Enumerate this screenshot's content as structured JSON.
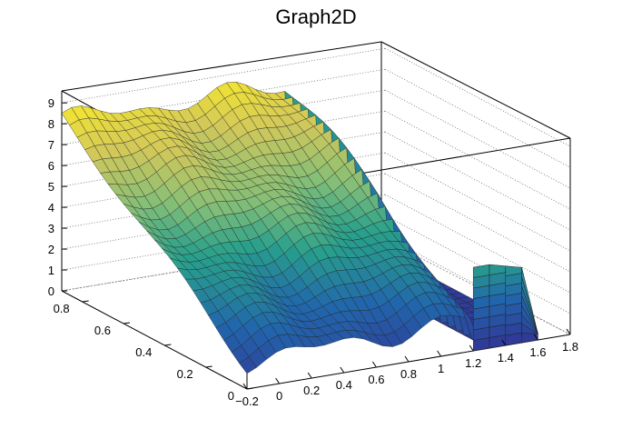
{
  "chart_data": {
    "type": "surface",
    "title": "Graph2D",
    "xlabel": "",
    "ylabel": "",
    "zlabel": "",
    "xlim": [
      -0.2,
      1.8
    ],
    "ylim": [
      0,
      0.9
    ],
    "zlim": [
      0,
      9.4
    ],
    "x_ticks": [
      "−0.2",
      "0",
      "0.2",
      "0.4",
      "0.6",
      "0.8",
      "1",
      "1.2",
      "1.4",
      "1.6",
      "1.8"
    ],
    "y_ticks": [
      "0",
      "0.2",
      "0.4",
      "0.6",
      "0.8"
    ],
    "z_ticks": [
      "0",
      "1",
      "2",
      "3",
      "4",
      "5",
      "6",
      "7",
      "8",
      "9"
    ],
    "grid": true,
    "colormap": "viridis-like",
    "data_region": {
      "x": [
        -0.2,
        1.6
      ],
      "y": [
        0,
        0.9
      ]
    },
    "z_at_x_min": {
      "y": [
        0,
        0.45,
        0.9
      ],
      "z": [
        1.3,
        4.6,
        8.2
      ]
    },
    "z_at_x_1_2": {
      "y": [
        0,
        0.45,
        0.9
      ],
      "z": [
        1.5,
        5.1,
        8.0
      ]
    },
    "edge_drop_x": 1.2,
    "edge_column_x": [
      1.2,
      1.3,
      1.4,
      1.5,
      1.6
    ],
    "edge_column_top_z": [
      4.0,
      4.0,
      3.8,
      3.6,
      0.3
    ]
  }
}
